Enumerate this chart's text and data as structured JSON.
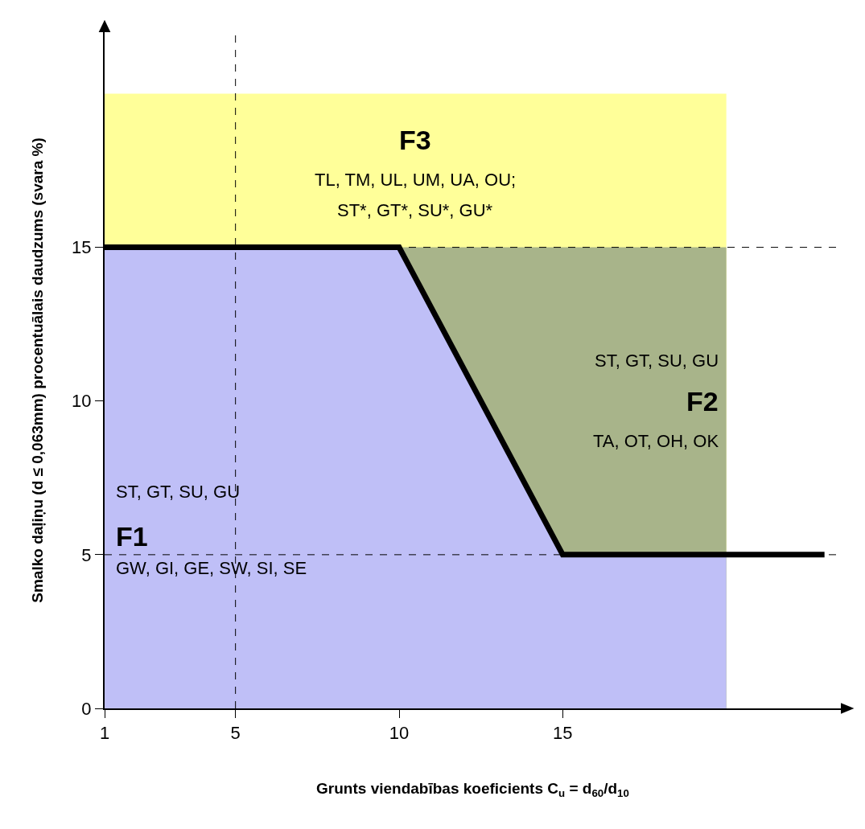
{
  "chart_data": {
    "type": "area",
    "xlabel": "Grunts viendabības koeficients C$_{u}$ = d$_{60}$/d$_{10}$",
    "ylabel": "Smalko daļiņu (d ≤ 0,063mm) procentuālais daudzums (svara %)",
    "series": [
      {
        "name": "F3",
        "color": "#ffff99",
        "x": [
          1,
          20
        ],
        "values": [
          20,
          20
        ]
      },
      {
        "name": "F2",
        "color": "#a8b48a",
        "x": [
          10,
          20
        ],
        "values": [
          15,
          15
        ]
      },
      {
        "name": "F1",
        "color": "#bfbff7",
        "x": [
          1,
          10,
          15,
          20
        ],
        "values": [
          15,
          15,
          5,
          5
        ]
      },
      {
        "type": "line",
        "color": "#000000",
        "x": [
          1,
          10,
          15,
          23
        ],
        "values": [
          15,
          15,
          5,
          5
        ]
      }
    ],
    "ref_lines": [
      {
        "axis": "y",
        "value": 15,
        "line_style": "dashed",
        "color": "#000000"
      },
      {
        "axis": "y",
        "value": 5,
        "line_style": "dashed",
        "color": "#000000"
      },
      {
        "axis": "x",
        "value": 5,
        "line_style": "dashed",
        "color": "#000000"
      }
    ],
    "annotations": [
      "TL, TM, UL, UM, UA, OU;",
      "ST*, GT*, SU*, GU*",
      "ST, GT, SU, GU",
      "TA, OT, OH, OK",
      "ST, GT, SU, GU",
      "GW, GI, GE, SW, SI, SE"
    ],
    "xlim": [
      1,
      23.5
    ],
    "ylim": [
      0,
      22
    ],
    "xticks": [
      1,
      5,
      10,
      15
    ],
    "yticks": [
      0,
      5,
      10,
      15
    ]
  }
}
